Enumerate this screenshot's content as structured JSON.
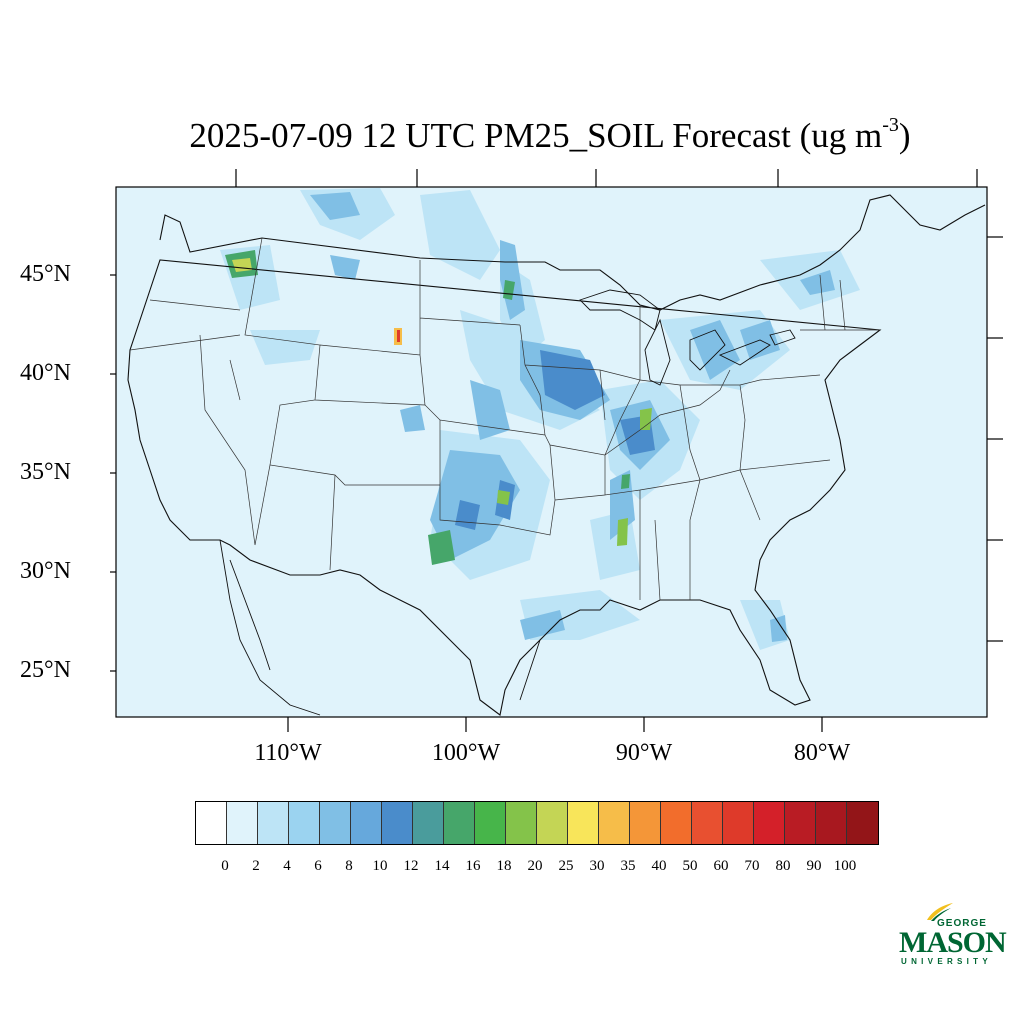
{
  "title": {
    "main": "2025-07-09 12 UTC PM25_SOIL Forecast (ug m",
    "superscript": "-3",
    "close": ")"
  },
  "lat_labels": [
    "45°N",
    "40°N",
    "35°N",
    "30°N",
    "25°N"
  ],
  "lon_labels": [
    "110°W",
    "100°W",
    "90°W",
    "80°W"
  ],
  "colorbar": {
    "labels": [
      "0",
      "2",
      "4",
      "6",
      "8",
      "10",
      "12",
      "14",
      "16",
      "18",
      "20",
      "25",
      "30",
      "35",
      "40",
      "50",
      "60",
      "70",
      "80",
      "90",
      "100"
    ],
    "colors": [
      "#ffffff",
      "#e0f3fb",
      "#bde4f6",
      "#9bd3f0",
      "#80bfe5",
      "#66a8dc",
      "#4a8ccb",
      "#4a9c9c",
      "#46a66a",
      "#47b54a",
      "#84c34a",
      "#c4d555",
      "#f8e55a",
      "#f6bd49",
      "#f49638",
      "#f26d2c",
      "#e85030",
      "#de3a2a",
      "#d42029",
      "#b91c24",
      "#a8181f",
      "#931518"
    ]
  },
  "logo": {
    "line1": "GEORGE",
    "line2": "MASON",
    "line3": "UNIVERSITY",
    "color": "#006633",
    "accent": "#f2c01e"
  },
  "map_colors": {
    "background": "#e0f3fb",
    "level2": "#bde4f6",
    "level3": "#9bd3f0",
    "level4": "#80bfe5",
    "level5": "#66a8dc",
    "level6": "#4a8ccb",
    "green1": "#4a9c9c",
    "green2": "#46a66a",
    "green3": "#84c34a",
    "yellow": "#f8e55a",
    "red": "#de3a2a"
  }
}
